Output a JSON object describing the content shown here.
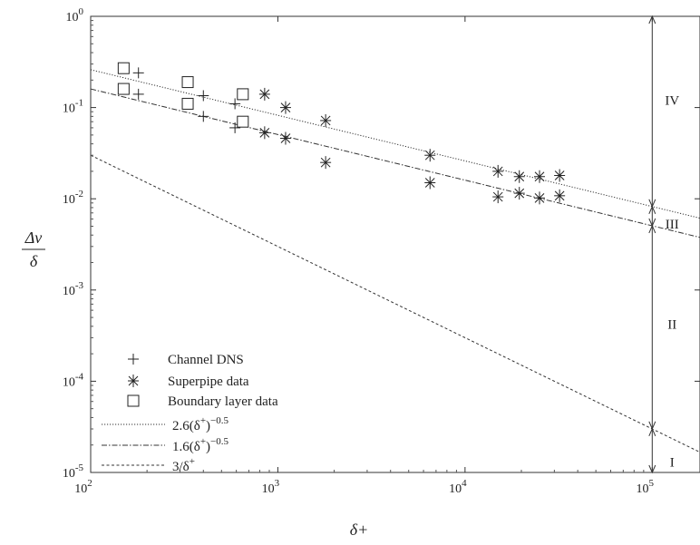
{
  "chart_data": {
    "type": "scatter",
    "title": "",
    "xscale": "log",
    "yscale": "log",
    "xlim": [
      100,
      180000
    ],
    "ylim": [
      1e-05,
      1
    ],
    "xlabel": "δ+",
    "ylabel_top": "Δv",
    "ylabel_bottom": "δ",
    "x_ticks": [
      {
        "value": 100,
        "base": "10",
        "exp": "2"
      },
      {
        "value": 1000,
        "base": "10",
        "exp": "3"
      },
      {
        "value": 10000,
        "base": "10",
        "exp": "4"
      },
      {
        "value": 100000,
        "base": "10",
        "exp": "5"
      }
    ],
    "y_ticks": [
      {
        "value": 1e-05,
        "base": "10",
        "exp": "-5"
      },
      {
        "value": 0.0001,
        "base": "10",
        "exp": "-4"
      },
      {
        "value": 0.001,
        "base": "10",
        "exp": "-3"
      },
      {
        "value": 0.01,
        "base": "10",
        "exp": "-2"
      },
      {
        "value": 0.1,
        "base": "10",
        "exp": "-1"
      },
      {
        "value": 1,
        "base": "10",
        "exp": "0"
      }
    ],
    "series": [
      {
        "name": "Channel DNS",
        "marker": "plus",
        "points": [
          [
            180,
            0.24
          ],
          [
            180,
            0.14
          ],
          [
            400,
            0.135
          ],
          [
            400,
            0.08
          ],
          [
            590,
            0.11
          ],
          [
            590,
            0.06
          ]
        ]
      },
      {
        "name": "Superpipe data",
        "marker": "asterisk",
        "points": [
          [
            850,
            0.14
          ],
          [
            850,
            0.053
          ],
          [
            1100,
            0.1
          ],
          [
            1100,
            0.046
          ],
          [
            1800,
            0.072
          ],
          [
            1800,
            0.025
          ],
          [
            6500,
            0.03
          ],
          [
            6500,
            0.015
          ],
          [
            15000,
            0.02
          ],
          [
            15000,
            0.0105
          ],
          [
            19500,
            0.0175
          ],
          [
            19500,
            0.0115
          ],
          [
            25000,
            0.0175
          ],
          [
            25000,
            0.0102
          ],
          [
            32000,
            0.018
          ],
          [
            32000,
            0.0108
          ]
        ]
      },
      {
        "name": "Boundary layer data",
        "marker": "square",
        "points": [
          [
            150,
            0.27
          ],
          [
            150,
            0.16
          ],
          [
            330,
            0.19
          ],
          [
            330,
            0.11
          ],
          [
            650,
            0.14
          ],
          [
            650,
            0.07
          ]
        ]
      }
    ],
    "lines": [
      {
        "name": "2.6(δ+)−0.5",
        "name_base": "2.6(δ",
        "name_sup1": "+",
        "name_mid": ")",
        "name_sup2": "−0.5",
        "coef": 2.6,
        "power": -0.5,
        "style": "dotted"
      },
      {
        "name": "1.6(δ+)−0.5",
        "name_base": "1.6(δ",
        "name_sup1": "+",
        "name_mid": ")",
        "name_sup2": "−0.5",
        "coef": 1.6,
        "power": -0.5,
        "style": "dashdot"
      },
      {
        "name": "3/δ+",
        "name_base": "3/δ",
        "name_sup1": "+",
        "name_mid": "",
        "name_sup2": "",
        "coef": 3,
        "power": -1,
        "style": "dashed"
      }
    ],
    "regions": {
      "x": 100000,
      "boundaries": [
        1e-05,
        3.01e-05,
        0.00506,
        0.00822,
        1
      ],
      "labels": [
        "I",
        "II",
        "III",
        "IV"
      ],
      "label_y": [
        1.3e-05,
        0.00042,
        0.0053,
        0.12
      ]
    },
    "legend_position": "lower-left",
    "grid": false
  }
}
